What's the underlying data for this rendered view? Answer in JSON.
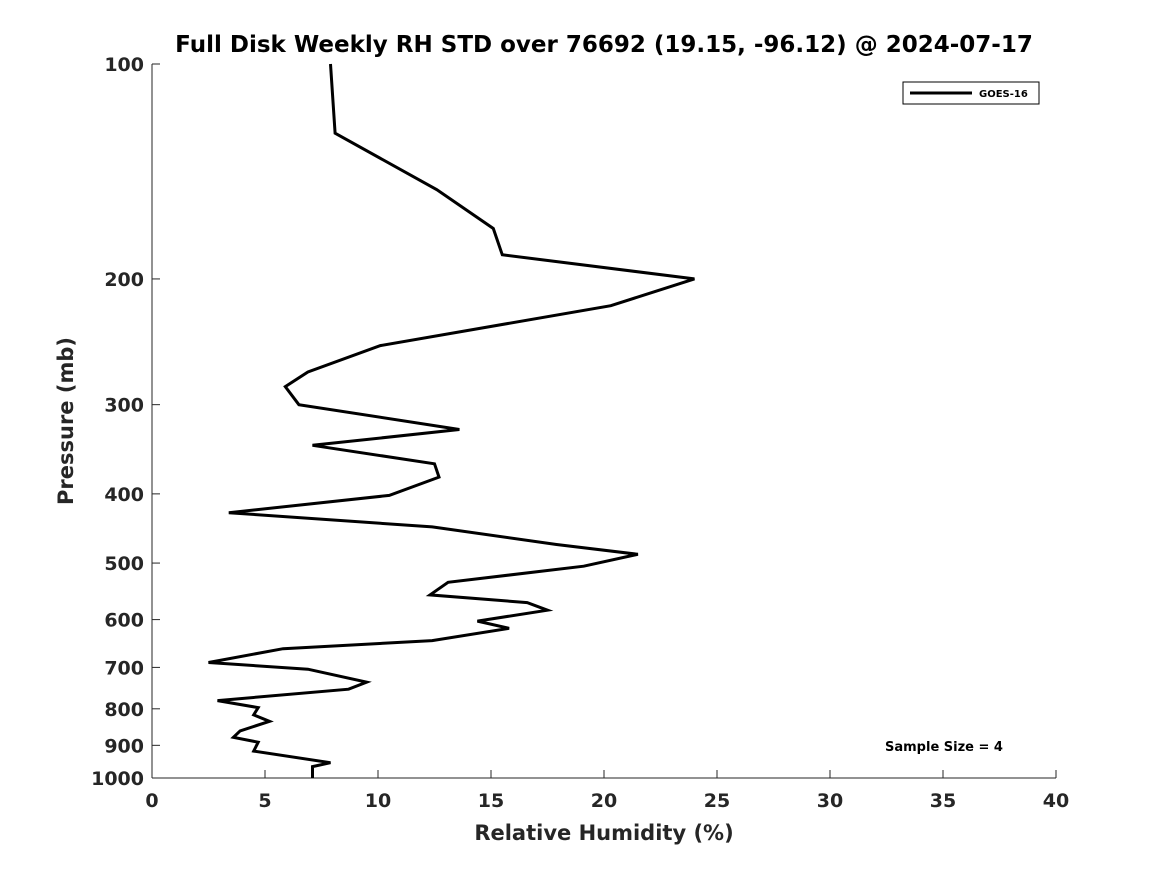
{
  "chart_data": {
    "type": "line",
    "title": "Full Disk Weekly RH STD over 76692 (19.15, -96.12) @ 2024-07-17",
    "xlabel": "Relative Humidity (%)",
    "ylabel": "Pressure (mb)",
    "xlim": [
      0,
      40
    ],
    "ylim": [
      100,
      1000
    ],
    "y_scale": "log",
    "y_reversed": true,
    "x_ticks": [
      0,
      5,
      10,
      15,
      20,
      25,
      30,
      35,
      40
    ],
    "y_ticks": [
      100,
      200,
      300,
      400,
      500,
      600,
      700,
      800,
      900,
      1000
    ],
    "grid": false,
    "legend_position": "top-right",
    "annotation": "Sample Size = 4",
    "series": [
      {
        "name": "GOES-16",
        "color": "#000000",
        "points": [
          [
            7.9,
            100
          ],
          [
            8.1,
            125
          ],
          [
            12.6,
            150
          ],
          [
            15.1,
            170
          ],
          [
            15.5,
            185
          ],
          [
            24.0,
            200
          ],
          [
            20.3,
            218
          ],
          [
            10.1,
            248
          ],
          [
            6.9,
            270
          ],
          [
            5.9,
            283
          ],
          [
            6.5,
            300
          ],
          [
            13.6,
            325
          ],
          [
            7.1,
            342
          ],
          [
            12.5,
            363
          ],
          [
            12.7,
            379
          ],
          [
            10.5,
            402
          ],
          [
            3.4,
            425
          ],
          [
            12.4,
            445
          ],
          [
            17.9,
            471
          ],
          [
            21.5,
            486
          ],
          [
            19.1,
            505
          ],
          [
            13.1,
            532
          ],
          [
            12.3,
            554
          ],
          [
            16.6,
            568
          ],
          [
            17.5,
            582
          ],
          [
            14.4,
            603
          ],
          [
            15.8,
            617
          ],
          [
            12.4,
            642
          ],
          [
            5.8,
            659
          ],
          [
            2.5,
            689
          ],
          [
            6.9,
            704
          ],
          [
            9.5,
            734
          ],
          [
            8.7,
            751
          ],
          [
            2.9,
            779
          ],
          [
            4.7,
            797
          ],
          [
            4.5,
            816
          ],
          [
            5.2,
            833
          ],
          [
            3.9,
            859
          ],
          [
            3.6,
            877
          ],
          [
            4.7,
            891
          ],
          [
            4.5,
            917
          ],
          [
            7.9,
            952
          ],
          [
            7.1,
            964
          ],
          [
            7.1,
            1000
          ]
        ]
      }
    ]
  }
}
